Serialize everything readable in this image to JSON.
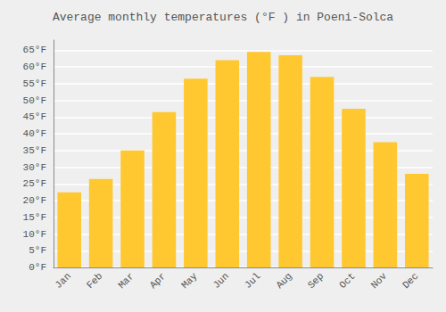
{
  "chart_data": {
    "type": "bar",
    "title": "Average monthly temperatures (°F ) in Poeni-Solca",
    "categories": [
      "Jan",
      "Feb",
      "Mar",
      "Apr",
      "May",
      "Jun",
      "Jul",
      "Aug",
      "Sep",
      "Oct",
      "Nov",
      "Dec"
    ],
    "values": [
      22.5,
      26.5,
      35.0,
      46.5,
      56.5,
      62.0,
      64.5,
      63.5,
      57.0,
      47.5,
      37.5,
      28.0
    ],
    "color": "#FFC830",
    "ylim": [
      0,
      68
    ],
    "yticks": [
      {
        "value": 0,
        "label": "0°F"
      },
      {
        "value": 5,
        "label": "5°F"
      },
      {
        "value": 10,
        "label": "10°F"
      },
      {
        "value": 15,
        "label": "15°F"
      },
      {
        "value": 20,
        "label": "20°F"
      },
      {
        "value": 25,
        "label": "25°F"
      },
      {
        "value": 30,
        "label": "30°F"
      },
      {
        "value": 35,
        "label": "35°F"
      },
      {
        "value": 40,
        "label": "40°F"
      },
      {
        "value": 45,
        "label": "45°F"
      },
      {
        "value": 50,
        "label": "50°F"
      },
      {
        "value": 55,
        "label": "55°F"
      },
      {
        "value": 60,
        "label": "60°F"
      },
      {
        "value": 65,
        "label": "65°F"
      }
    ],
    "grid": true
  }
}
